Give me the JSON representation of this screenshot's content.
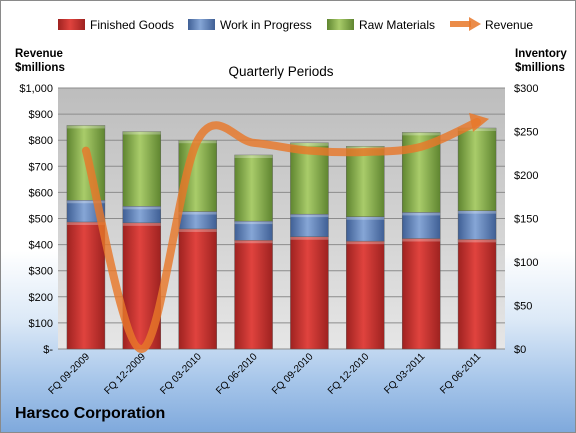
{
  "company": "Harsco Corporation",
  "chart_data": {
    "type": "bar",
    "subtype": "stacked bar with line overlay",
    "title": "Quarterly Periods",
    "y_left_label": "Revenue\n$millions",
    "y_right_label": "Inventory\n$millions",
    "y_left_ticks": [
      "$-",
      "$100",
      "$200",
      "$300",
      "$400",
      "$500",
      "$600",
      "$700",
      "$800",
      "$900",
      "$1,000"
    ],
    "y_right_ticks": [
      "$0",
      "$50",
      "$100",
      "$150",
      "$200",
      "$250",
      "$300"
    ],
    "y_left_range": [
      0,
      1000
    ],
    "y_right_range": [
      0,
      300
    ],
    "categories": [
      "FQ 09-2009",
      "FQ 12-2009",
      "FQ 03-2010",
      "FQ 06-2010",
      "FQ 09-2010",
      "FQ 12-2010",
      "FQ 03-2011",
      "FQ 06-2011"
    ],
    "legend_position": "top",
    "grid": true,
    "series": [
      {
        "name": "Finished Goods",
        "axis": "right",
        "kind": "bar",
        "color": "#c0302c",
        "values": [
          146,
          145,
          138,
          125,
          129,
          124,
          127,
          126
        ]
      },
      {
        "name": "Work in Progress",
        "axis": "right",
        "kind": "bar",
        "color": "#5b7fb8",
        "values": [
          25,
          19,
          20,
          22,
          26,
          28,
          30,
          33
        ]
      },
      {
        "name": "Raw Materials",
        "axis": "right",
        "kind": "bar",
        "color": "#8fb34f",
        "values": [
          86,
          86,
          82,
          76,
          82,
          81,
          92,
          95
        ]
      },
      {
        "name": "Revenue",
        "axis": "left",
        "kind": "line",
        "color": "#e8782a",
        "values": [
          760,
          0,
          800,
          790,
          760,
          755,
          775,
          870
        ]
      }
    ]
  }
}
